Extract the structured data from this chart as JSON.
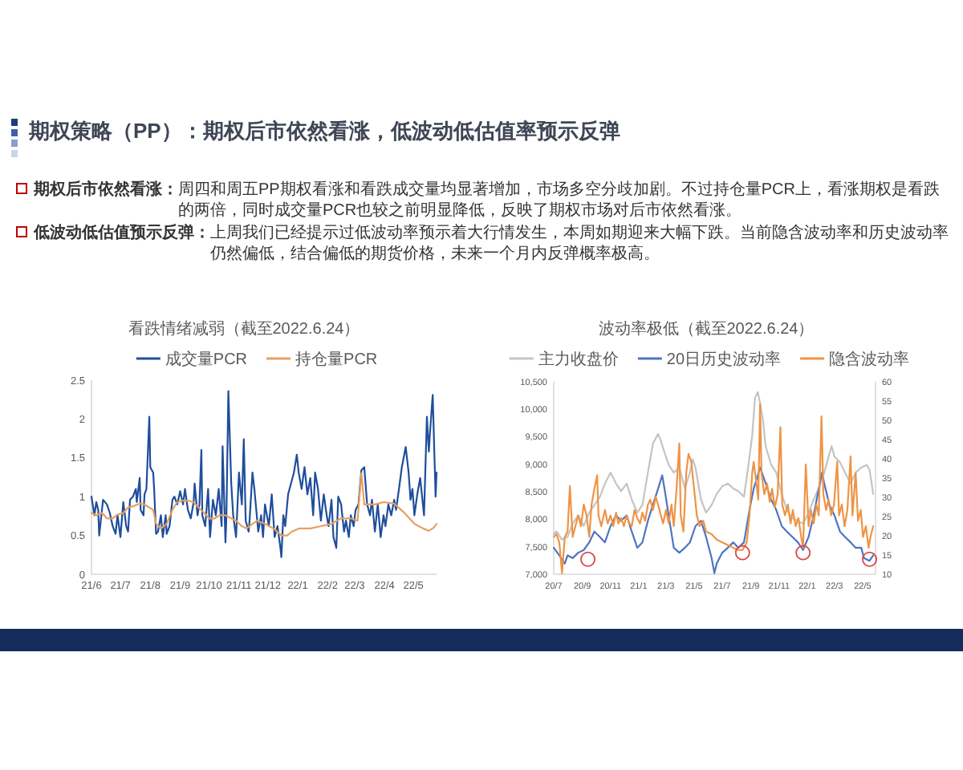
{
  "chart_data": [
    {
      "type": "other",
      "title": "期权策略（PP）：期权后市依然看涨，低波动低估值率预示反弹",
      "annotations": [
        "期权后市依然看涨：",
        "周四和周五PP期权看涨和看跌成交量均显著增加，市场多空分歧加剧。不过持仓量PCR上，看涨期权是看跌的两倍，同时成交量PCR也较之前明显降低，反映了期权市场对后市依然看涨。",
        "低波动低估值预示反弹：",
        "上周我们已经提示过低波动率预示着大行情发生，本周如期迎来大幅下跌。当前隐含波动率和历史波动率仍然偏低，结合偏低的期货价格，未来一个月内反弹概率极高。"
      ]
    },
    {
      "type": "line",
      "title": "看跌情绪减弱（截至2022.6.24）",
      "legend": "top",
      "xlim": [
        "2021-06-01",
        "2022-05-25"
      ],
      "xticks": [
        {
          "value": "2021-06-01",
          "label": "21/6"
        },
        {
          "value": "2021-07-01",
          "label": "21/7"
        },
        {
          "value": "2021-08-01",
          "label": "21/8"
        },
        {
          "value": "2021-09-01",
          "label": "21/9"
        },
        {
          "value": "2021-10-01",
          "label": "21/10"
        },
        {
          "value": "2021-11-01",
          "label": "21/11"
        },
        {
          "value": "2021-12-01",
          "label": "21/12"
        },
        {
          "value": "2022-01-01",
          "label": "22/1"
        },
        {
          "value": "2022-02-01",
          "label": "22/2"
        },
        {
          "value": "2022-03-01",
          "label": "22/3"
        },
        {
          "value": "2022-04-01",
          "label": "22/4"
        },
        {
          "value": "2022-05-01",
          "label": "22/5"
        }
      ],
      "ylim": [
        0,
        2.5
      ],
      "yticks": [
        0,
        0.5,
        1,
        1.5,
        2,
        2.5
      ],
      "series": [
        {
          "name": "成交量PCR",
          "color": "#1f4e9c",
          "x": [
            "2021-06-01",
            "2021-06-04",
            "2021-06-06",
            "2021-06-08",
            "2021-06-09",
            "2021-06-13",
            "2021-06-17",
            "2021-06-20",
            "2021-06-23",
            "2021-06-26",
            "2021-06-28",
            "2021-07-01",
            "2021-07-04",
            "2021-07-07",
            "2021-07-09",
            "2021-07-11",
            "2021-07-14",
            "2021-07-17",
            "2021-07-18",
            "2021-07-21",
            "2021-07-22",
            "2021-07-25",
            "2021-07-26",
            "2021-07-28",
            "2021-07-31",
            "2021-08-01",
            "2021-08-04",
            "2021-08-05",
            "2021-08-07",
            "2021-08-09",
            "2021-08-12",
            "2021-08-14",
            "2021-08-17",
            "2021-08-18",
            "2021-08-21",
            "2021-08-24",
            "2021-08-26",
            "2021-08-29",
            "2021-09-01",
            "2021-09-04",
            "2021-09-06",
            "2021-09-09",
            "2021-09-12",
            "2021-09-15",
            "2021-09-16",
            "2021-09-19",
            "2021-09-21",
            "2021-09-23",
            "2021-09-24",
            "2021-09-27",
            "2021-09-30",
            "2021-10-02",
            "2021-10-05",
            "2021-10-08",
            "2021-10-11",
            "2021-10-14",
            "2021-10-15",
            "2021-10-18",
            "2021-10-19",
            "2021-10-21",
            "2021-10-24",
            "2021-10-26",
            "2021-10-29",
            "2021-11-01",
            "2021-11-04",
            "2021-11-06",
            "2021-11-08",
            "2021-11-11",
            "2021-11-12",
            "2021-11-15",
            "2021-11-17",
            "2021-11-21",
            "2021-11-24",
            "2021-11-26",
            "2021-11-28",
            "2021-12-02",
            "2021-12-05",
            "2021-12-08",
            "2021-12-11",
            "2021-12-14",
            "2021-12-15",
            "2021-12-17",
            "2021-12-19",
            "2021-12-22",
            "2021-12-25",
            "2021-12-28",
            "2021-12-31",
            "2022-01-02",
            "2022-01-05",
            "2022-01-08",
            "2022-01-11",
            "2022-01-14",
            "2022-01-17",
            "2022-01-19",
            "2022-01-22",
            "2022-01-25",
            "2022-01-28",
            "2022-01-31",
            "2022-02-02",
            "2022-02-05",
            "2022-02-07",
            "2022-02-10",
            "2022-02-12",
            "2022-02-15",
            "2022-02-18",
            "2022-02-20",
            "2022-02-23",
            "2022-02-25",
            "2022-02-28",
            "2022-03-02",
            "2022-03-05",
            "2022-03-08",
            "2022-03-11",
            "2022-03-14",
            "2022-03-17",
            "2022-03-19",
            "2022-03-22",
            "2022-03-25",
            "2022-03-28",
            "2022-03-31",
            "2022-04-02",
            "2022-04-05",
            "2022-04-08",
            "2022-04-11",
            "2022-04-13",
            "2022-04-16",
            "2022-04-19",
            "2022-04-23",
            "2022-04-26",
            "2022-04-28",
            "2022-04-30",
            "2022-05-02",
            "2022-05-05",
            "2022-05-08",
            "2022-05-12",
            "2022-05-15",
            "2022-05-17",
            "2022-05-18",
            "2022-05-21",
            "2022-05-24",
            "2022-05-25"
          ],
          "values": [
            1.0,
            0.76,
            0.93,
            0.83,
            0.5,
            0.96,
            0.9,
            0.79,
            0.62,
            0.52,
            0.76,
            0.48,
            0.93,
            0.62,
            0.55,
            0.96,
            1.0,
            1.1,
            0.93,
            1.24,
            0.83,
            0.76,
            1.03,
            1.1,
            2.03,
            1.38,
            1.31,
            1.1,
            0.52,
            0.55,
            0.76,
            0.48,
            0.76,
            0.52,
            0.62,
            0.96,
            1.0,
            0.9,
            1.07,
            0.9,
            1.1,
            0.83,
            0.72,
            0.93,
            1.17,
            0.76,
            0.9,
            1.6,
            0.76,
            0.62,
            1.1,
            0.48,
            0.96,
            0.76,
            1.1,
            0.62,
            1.65,
            0.41,
            0.76,
            2.36,
            1.17,
            0.76,
            0.48,
            1.31,
            0.9,
            1.74,
            0.69,
            0.55,
            0.69,
            1.31,
            1.1,
            0.55,
            0.76,
            0.48,
            0.9,
            0.62,
            1.03,
            0.48,
            0.62,
            0.34,
            0.22,
            0.76,
            0.62,
            1.03,
            1.17,
            1.31,
            1.54,
            1.31,
            1.1,
            1.38,
            1.03,
            1.24,
            0.76,
            1.31,
            1.1,
            0.69,
            1.03,
            0.76,
            0.62,
            0.96,
            0.48,
            0.34,
            1.0,
            0.9,
            0.55,
            0.69,
            0.48,
            0.76,
            0.62,
            0.83,
            0.9,
            1.34,
            1.38,
            0.9,
            0.76,
            0.96,
            0.55,
            0.9,
            0.48,
            0.76,
            0.62,
            0.9,
            0.76,
            0.96,
            0.83,
            1.1,
            1.38,
            1.64,
            1.31,
            0.96,
            1.1,
            0.76,
            1.03,
            1.24,
            0.76,
            2.03,
            1.58,
            1.79,
            2.31,
            1.0,
            1.31
          ]
        },
        {
          "name": "持仓量PCR",
          "color": "#e6a060",
          "x": [
            "2021-06-01",
            "2021-06-06",
            "2021-06-12",
            "2021-06-17",
            "2021-06-23",
            "2021-06-28",
            "2021-07-04",
            "2021-07-09",
            "2021-07-15",
            "2021-07-21",
            "2021-07-26",
            "2021-07-31",
            "2021-08-04",
            "2021-08-07",
            "2021-08-12",
            "2021-08-18",
            "2021-08-24",
            "2021-08-29",
            "2021-09-04",
            "2021-09-09",
            "2021-09-15",
            "2021-09-20",
            "2021-09-26",
            "2021-10-01",
            "2021-10-07",
            "2021-10-12",
            "2021-10-18",
            "2021-10-24",
            "2021-10-29",
            "2021-11-04",
            "2021-11-09",
            "2021-11-15",
            "2021-11-20",
            "2021-11-28",
            "2021-12-08",
            "2021-12-15",
            "2021-12-21",
            "2021-12-26",
            "2022-01-02",
            "2022-01-14",
            "2022-01-25",
            "2022-02-05",
            "2022-02-15",
            "2022-02-25",
            "2022-03-04",
            "2022-03-08",
            "2022-03-11",
            "2022-03-22",
            "2022-03-31",
            "2022-04-11",
            "2022-04-21",
            "2022-05-02",
            "2022-05-11",
            "2022-05-17",
            "2022-05-22",
            "2022-05-25"
          ],
          "values": [
            0.79,
            0.76,
            0.79,
            0.72,
            0.72,
            0.77,
            0.79,
            0.86,
            0.88,
            0.91,
            0.9,
            0.86,
            0.83,
            0.65,
            0.59,
            0.65,
            0.83,
            0.93,
            0.95,
            0.95,
            0.93,
            0.86,
            0.79,
            0.72,
            0.72,
            0.76,
            0.76,
            0.72,
            0.69,
            0.62,
            0.59,
            0.65,
            0.69,
            0.65,
            0.58,
            0.5,
            0.5,
            0.55,
            0.59,
            0.59,
            0.62,
            0.65,
            0.72,
            0.72,
            0.69,
            1.3,
            0.9,
            0.9,
            0.93,
            0.91,
            0.8,
            0.65,
            0.59,
            0.56,
            0.6,
            0.65
          ]
        }
      ]
    },
    {
      "type": "line",
      "title": "波动率极低（截至2022.6.24）",
      "legend": "top",
      "xlim": [
        "2020-07-01",
        "2022-05-29"
      ],
      "xticks": [
        {
          "value": "2020-07-01",
          "label": "20/7"
        },
        {
          "value": "2020-09-01",
          "label": "20/9"
        },
        {
          "value": "2020-11-01",
          "label": "20/11"
        },
        {
          "value": "2021-01-01",
          "label": "21/1"
        },
        {
          "value": "2021-03-01",
          "label": "21/3"
        },
        {
          "value": "2021-05-01",
          "label": "21/5"
        },
        {
          "value": "2021-07-01",
          "label": "21/7"
        },
        {
          "value": "2021-09-01",
          "label": "21/9"
        },
        {
          "value": "2021-11-01",
          "label": "21/11"
        },
        {
          "value": "2022-01-01",
          "label": "22/1"
        },
        {
          "value": "2022-03-01",
          "label": "22/3"
        },
        {
          "value": "2022-05-01",
          "label": "22/5"
        }
      ],
      "ylim": [
        7000,
        10500
      ],
      "yticks": [
        {
          "value": 7000,
          "label": "7,000"
        },
        {
          "value": 7500,
          "label": "7,500"
        },
        {
          "value": 8000,
          "label": "8,000"
        },
        {
          "value": 8500,
          "label": "8,500"
        },
        {
          "value": 9000,
          "label": "9,000"
        },
        {
          "value": 9500,
          "label": "9,500"
        },
        {
          "value": 10000,
          "label": "10,000"
        },
        {
          "value": 10500,
          "label": "10,500"
        }
      ],
      "y2lim": [
        10,
        60
      ],
      "y2ticks": [
        10,
        15,
        20,
        25,
        30,
        35,
        40,
        45,
        50,
        55,
        60
      ],
      "series": [
        {
          "name": "主力收盘价",
          "color": "#c4c4c4",
          "x": [
            "2020-07-01",
            "2020-07-07",
            "2020-07-19",
            "2020-07-31",
            "2020-08-11",
            "2020-08-23",
            "2020-09-04",
            "2020-09-16",
            "2020-09-27",
            "2020-10-09",
            "2020-10-20",
            "2020-11-01",
            "2020-11-13",
            "2020-11-24",
            "2020-12-06",
            "2020-12-17",
            "2020-12-29",
            "2021-01-09",
            "2021-01-21",
            "2021-02-01",
            "2021-02-12",
            "2021-02-18",
            "2021-02-23",
            "2021-03-07",
            "2021-03-18",
            "2021-03-30",
            "2021-04-11",
            "2021-04-22",
            "2021-04-28",
            "2021-05-04",
            "2021-05-16",
            "2021-05-27",
            "2021-06-08",
            "2021-06-19",
            "2021-07-01",
            "2021-07-13",
            "2021-07-25",
            "2021-08-05",
            "2021-08-17",
            "2021-08-26",
            "2021-09-04",
            "2021-09-10",
            "2021-09-16",
            "2021-09-21",
            "2021-09-27",
            "2021-10-03",
            "2021-10-15",
            "2021-10-26",
            "2021-11-07",
            "2021-11-18",
            "2021-11-30",
            "2021-12-12",
            "2021-12-23",
            "2022-01-04",
            "2022-01-15",
            "2022-01-26",
            "2022-02-07",
            "2022-02-18",
            "2022-02-23",
            "2022-03-01",
            "2022-03-13",
            "2022-03-24",
            "2022-04-05",
            "2022-04-16",
            "2022-04-28",
            "2022-05-10",
            "2022-05-16",
            "2022-05-24"
          ],
          "values": [
            7730,
            7780,
            7630,
            7680,
            7920,
            8070,
            7880,
            8120,
            8260,
            8410,
            8650,
            8850,
            8650,
            8510,
            8650,
            8360,
            8120,
            8260,
            8850,
            9380,
            9550,
            9430,
            9290,
            8990,
            8850,
            8940,
            8560,
            8850,
            9090,
            8940,
            8360,
            8120,
            8260,
            8460,
            8600,
            8650,
            8560,
            8510,
            8410,
            8940,
            9530,
            10210,
            10310,
            10110,
            9820,
            9330,
            8990,
            8850,
            8460,
            8170,
            8020,
            7970,
            7920,
            8120,
            8360,
            8560,
            8850,
            9190,
            9330,
            9140,
            9040,
            8850,
            8650,
            8850,
            8940,
            8990,
            8900,
            8460
          ]
        },
        {
          "name": "20日历史波动率",
          "color": "#4f74c2",
          "axis": "y2",
          "x": [
            "2020-07-01",
            "2020-07-13",
            "2020-07-25",
            "2020-07-31",
            "2020-08-11",
            "2020-08-23",
            "2020-09-04",
            "2020-09-16",
            "2020-09-27",
            "2020-10-09",
            "2020-10-20",
            "2020-11-01",
            "2020-11-13",
            "2020-11-24",
            "2020-12-06",
            "2020-12-17",
            "2020-12-29",
            "2021-01-09",
            "2021-01-21",
            "2021-02-01",
            "2021-02-12",
            "2021-02-21",
            "2021-02-26",
            "2021-03-07",
            "2021-03-18",
            "2021-03-30",
            "2021-04-11",
            "2021-04-22",
            "2021-05-04",
            "2021-05-16",
            "2021-05-27",
            "2021-06-08",
            "2021-06-14",
            "2021-06-19",
            "2021-07-01",
            "2021-07-13",
            "2021-07-25",
            "2021-08-05",
            "2021-08-17",
            "2021-08-29",
            "2021-09-07",
            "2021-09-16",
            "2021-09-21",
            "2021-10-03",
            "2021-10-15",
            "2021-10-26",
            "2021-11-07",
            "2021-11-18",
            "2021-11-30",
            "2021-12-12",
            "2021-12-23",
            "2022-01-04",
            "2022-01-15",
            "2022-01-26",
            "2022-02-02",
            "2022-02-07",
            "2022-02-18",
            "2022-03-01",
            "2022-03-13",
            "2022-03-24",
            "2022-04-05",
            "2022-04-16",
            "2022-04-28",
            "2022-05-04",
            "2022-05-16",
            "2022-05-24"
          ],
          "values": [
            16.9,
            14.9,
            12.8,
            14.9,
            14.2,
            15.6,
            16.3,
            18.3,
            21.1,
            19.7,
            18.3,
            22.5,
            25.3,
            23.9,
            25.3,
            21.1,
            16.9,
            18.3,
            23.9,
            28.1,
            32.2,
            35.7,
            32.2,
            25.3,
            16.9,
            15.6,
            16.9,
            18.3,
            22.5,
            23.9,
            19.7,
            14.2,
            10.3,
            12.8,
            15.6,
            16.9,
            18.3,
            16.9,
            18.3,
            26.7,
            32.2,
            35.7,
            37.8,
            33.6,
            29.4,
            26.7,
            22.5,
            21.1,
            19.7,
            18.3,
            16.3,
            19.7,
            25.3,
            32.2,
            36.4,
            33.6,
            28.1,
            25.3,
            21.1,
            19.7,
            18.3,
            16.9,
            16.9,
            14.2,
            13.5,
            14.9
          ]
        },
        {
          "name": "隐含波动率",
          "color": "#ee9445",
          "axis": "y2",
          "x": [
            "2020-07-01",
            "2020-07-07",
            "2020-07-13",
            "2020-07-19",
            "2020-07-25",
            "2020-07-31",
            "2020-08-05",
            "2020-08-11",
            "2020-08-17",
            "2020-08-23",
            "2020-08-29",
            "2020-09-04",
            "2020-09-10",
            "2020-09-16",
            "2020-09-21",
            "2020-09-27",
            "2020-10-03",
            "2020-10-06",
            "2020-10-12",
            "2020-10-20",
            "2020-10-26",
            "2020-11-01",
            "2020-11-07",
            "2020-11-13",
            "2020-11-18",
            "2020-11-24",
            "2020-11-30",
            "2020-12-06",
            "2020-12-12",
            "2020-12-17",
            "2020-12-23",
            "2020-12-29",
            "2021-01-04",
            "2021-01-09",
            "2021-01-15",
            "2021-01-21",
            "2021-01-26",
            "2021-02-01",
            "2021-02-07",
            "2021-02-12",
            "2021-02-18",
            "2021-02-23",
            "2021-03-01",
            "2021-03-07",
            "2021-03-13",
            "2021-03-18",
            "2021-03-24",
            "2021-03-30",
            "2021-04-02",
            "2021-04-08",
            "2021-04-14",
            "2021-04-19",
            "2021-04-25",
            "2021-05-01",
            "2021-05-07",
            "2021-05-13",
            "2021-05-21",
            "2021-05-27",
            "2021-06-08",
            "2021-06-19",
            "2021-07-01",
            "2021-07-13",
            "2021-07-25",
            "2021-08-05",
            "2021-08-14",
            "2021-08-23",
            "2021-08-29",
            "2021-09-04",
            "2021-09-07",
            "2021-09-13",
            "2021-09-17",
            "2021-09-21",
            "2021-09-24",
            "2021-09-30",
            "2021-10-06",
            "2021-10-12",
            "2021-10-17",
            "2021-10-23",
            "2021-10-29",
            "2021-11-04",
            "2021-11-08",
            "2021-11-14",
            "2021-11-20",
            "2021-11-26",
            "2021-12-01",
            "2021-12-07",
            "2021-12-13",
            "2021-12-19",
            "2021-12-23",
            "2021-12-29",
            "2022-01-04",
            "2022-01-09",
            "2022-01-15",
            "2022-01-21",
            "2022-01-26",
            "2022-02-01",
            "2022-02-05",
            "2022-02-11",
            "2022-02-16",
            "2022-02-22",
            "2022-02-28",
            "2022-03-07",
            "2022-03-11",
            "2022-03-17",
            "2022-03-23",
            "2022-03-29",
            "2022-04-05",
            "2022-04-09",
            "2022-04-16",
            "2022-04-21",
            "2022-04-27",
            "2022-05-02",
            "2022-05-08",
            "2022-05-14",
            "2022-05-18",
            "2022-05-24"
          ],
          "values": [
            19.7,
            20.4,
            18.3,
            10.3,
            19.7,
            21.1,
            32.9,
            19.7,
            22.5,
            25.3,
            22.5,
            28.1,
            25.3,
            19.7,
            28.1,
            32.2,
            35.7,
            25.3,
            22.5,
            26.7,
            23.2,
            25.3,
            22.5,
            26.0,
            23.2,
            24.6,
            22.5,
            25.3,
            23.2,
            22.5,
            26.7,
            24.6,
            23.2,
            26.0,
            23.9,
            28.1,
            29.4,
            26.7,
            30.1,
            28.1,
            25.3,
            23.2,
            26.7,
            23.2,
            28.1,
            22.5,
            32.2,
            44.0,
            25.3,
            21.1,
            36.4,
            41.3,
            39.2,
            32.2,
            25.3,
            22.5,
            23.9,
            21.1,
            20.4,
            19.0,
            18.3,
            17.6,
            16.9,
            16.3,
            16.3,
            18.3,
            25.3,
            36.4,
            39.2,
            33.6,
            29.4,
            54.2,
            36.4,
            30.8,
            33.6,
            28.8,
            32.2,
            27.4,
            30.8,
            48.2,
            28.1,
            25.3,
            28.1,
            23.2,
            26.7,
            22.5,
            24.6,
            19.7,
            16.9,
            38.5,
            22.5,
            26.7,
            23.2,
            28.1,
            25.3,
            51.0,
            30.8,
            26.7,
            29.4,
            25.3,
            28.1,
            39.2,
            25.3,
            28.1,
            22.5,
            26.7,
            40.6,
            25.3,
            36.4,
            23.9,
            26.7,
            19.7,
            22.5,
            16.9,
            19.7,
            22.5
          ]
        },
        {
          "type": "scatter",
          "marker": "circle",
          "color": "#d94a4a",
          "axis": "y2",
          "x": [
            "2020-09-13",
            "2021-08-14",
            "2021-12-23",
            "2022-05-16"
          ],
          "values": [
            13.9,
            15.6,
            15.6,
            13.9
          ]
        }
      ]
    }
  ]
}
